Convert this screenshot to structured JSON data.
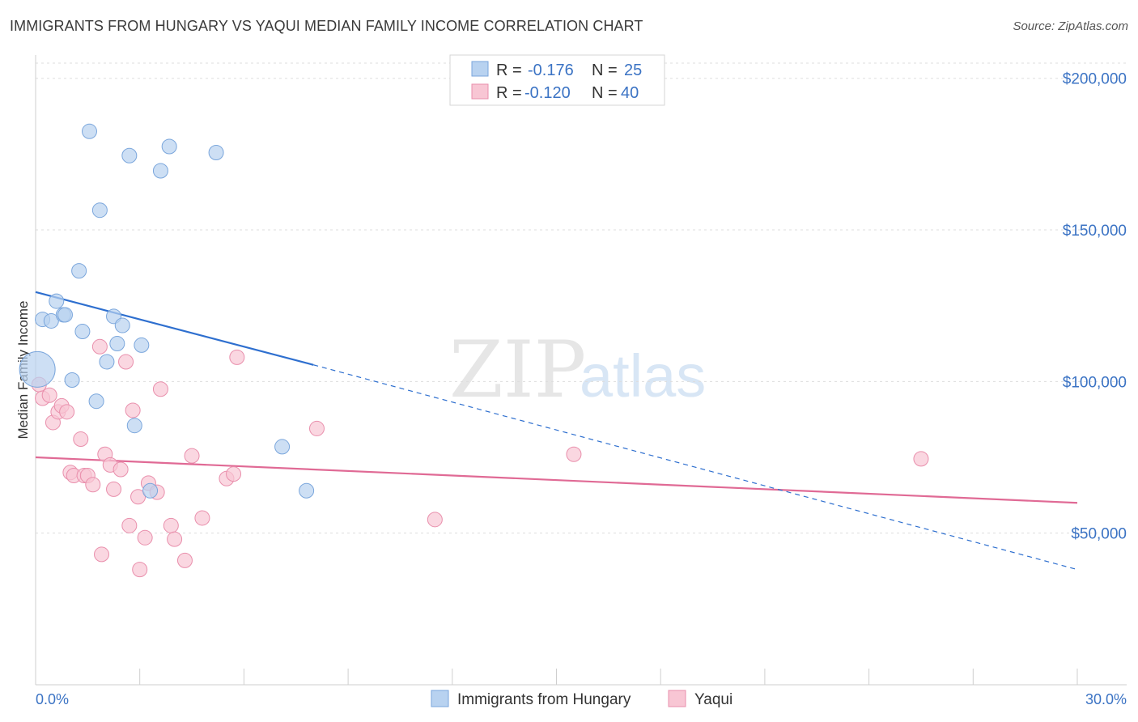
{
  "header": {
    "title": "IMMIGRANTS FROM HUNGARY VS YAQUI MEDIAN FAMILY INCOME CORRELATION CHART",
    "source": "Source: ZipAtlas.com"
  },
  "watermark": {
    "zip": "ZIP",
    "atlas": "atlas"
  },
  "colors": {
    "blue_fill": "#b8d2f0",
    "blue_stroke": "#7aa6dc",
    "blue_line": "#2e6fcf",
    "pink_fill": "#f8c6d4",
    "pink_stroke": "#e98fac",
    "pink_line": "#e06a95",
    "grid": "#dddddd",
    "axis_label": "#3b73c4"
  },
  "stats": [
    {
      "r_label": "R = ",
      "r_value": "-0.176",
      "n_label": "N = ",
      "n_value": "25"
    },
    {
      "r_label": "R = ",
      "r_value": "-0.120",
      "n_label": "N = ",
      "n_value": "40"
    }
  ],
  "chart_data": {
    "type": "scatter",
    "title": "IMMIGRANTS FROM HUNGARY VS YAQUI MEDIAN FAMILY INCOME CORRELATION CHART",
    "xlabel": "",
    "ylabel": "Median Family Income",
    "xlim": [
      0,
      30
    ],
    "ylim": [
      0,
      205000
    ],
    "x_tick_labels": [
      "0.0%",
      "30.0%"
    ],
    "y_ticks": [
      50000,
      100000,
      150000,
      200000
    ],
    "y_tick_labels": [
      "$50,000",
      "$100,000",
      "$150,000",
      "$200,000"
    ],
    "grid": "horizontal dashed",
    "legend_position": "bottom-center",
    "series": [
      {
        "name": "Immigrants from Hungary",
        "color": "#b8d2f0",
        "points": [
          {
            "x": 0.05,
            "y": 104000,
            "big": true
          },
          {
            "x": 0.2,
            "y": 120500
          },
          {
            "x": 0.45,
            "y": 120000
          },
          {
            "x": 0.6,
            "y": 126500
          },
          {
            "x": 0.8,
            "y": 122000
          },
          {
            "x": 0.85,
            "y": 122000
          },
          {
            "x": 1.05,
            "y": 100500
          },
          {
            "x": 1.25,
            "y": 136500
          },
          {
            "x": 1.35,
            "y": 116500
          },
          {
            "x": 1.55,
            "y": 182500
          },
          {
            "x": 1.75,
            "y": 93500
          },
          {
            "x": 1.85,
            "y": 156500
          },
          {
            "x": 2.05,
            "y": 106500
          },
          {
            "x": 2.25,
            "y": 121500
          },
          {
            "x": 2.35,
            "y": 112500
          },
          {
            "x": 2.5,
            "y": 118500
          },
          {
            "x": 2.7,
            "y": 174500
          },
          {
            "x": 2.85,
            "y": 85500
          },
          {
            "x": 3.05,
            "y": 112000
          },
          {
            "x": 3.3,
            "y": 64000
          },
          {
            "x": 3.6,
            "y": 169500
          },
          {
            "x": 3.85,
            "y": 177500
          },
          {
            "x": 5.2,
            "y": 175500
          },
          {
            "x": 7.1,
            "y": 78500
          },
          {
            "x": 7.8,
            "y": 64000
          }
        ],
        "trend": {
          "x": [
            0,
            8
          ],
          "y": [
            129500,
            105500
          ]
        },
        "trend_extension": {
          "x": [
            8,
            30
          ],
          "y": [
            105500,
            38000
          ]
        }
      },
      {
        "name": "Yaqui",
        "color": "#f8c6d4",
        "points": [
          {
            "x": 0.1,
            "y": 99000
          },
          {
            "x": 0.2,
            "y": 94500
          },
          {
            "x": 0.4,
            "y": 95500
          },
          {
            "x": 0.5,
            "y": 86500
          },
          {
            "x": 0.65,
            "y": 90000
          },
          {
            "x": 0.75,
            "y": 92000
          },
          {
            "x": 0.9,
            "y": 90000
          },
          {
            "x": 1.0,
            "y": 70000
          },
          {
            "x": 1.1,
            "y": 69000
          },
          {
            "x": 1.3,
            "y": 81000
          },
          {
            "x": 1.4,
            "y": 69000
          },
          {
            "x": 1.5,
            "y": 69000
          },
          {
            "x": 1.65,
            "y": 66000
          },
          {
            "x": 1.85,
            "y": 111500
          },
          {
            "x": 1.9,
            "y": 43000
          },
          {
            "x": 2.0,
            "y": 76000
          },
          {
            "x": 2.15,
            "y": 72500
          },
          {
            "x": 2.25,
            "y": 64500
          },
          {
            "x": 2.45,
            "y": 71000
          },
          {
            "x": 2.6,
            "y": 106500
          },
          {
            "x": 2.7,
            "y": 52500
          },
          {
            "x": 2.8,
            "y": 90500
          },
          {
            "x": 2.95,
            "y": 62000
          },
          {
            "x": 3.0,
            "y": 38000
          },
          {
            "x": 3.15,
            "y": 48500
          },
          {
            "x": 3.25,
            "y": 66500
          },
          {
            "x": 3.5,
            "y": 63500
          },
          {
            "x": 3.6,
            "y": 97500
          },
          {
            "x": 3.9,
            "y": 52500
          },
          {
            "x": 4.0,
            "y": 48000
          },
          {
            "x": 4.3,
            "y": 41000
          },
          {
            "x": 4.5,
            "y": 75500
          },
          {
            "x": 4.8,
            "y": 55000
          },
          {
            "x": 5.5,
            "y": 68000
          },
          {
            "x": 5.7,
            "y": 69500
          },
          {
            "x": 5.8,
            "y": 108000
          },
          {
            "x": 8.1,
            "y": 84500
          },
          {
            "x": 11.5,
            "y": 54500
          },
          {
            "x": 15.5,
            "y": 76000
          },
          {
            "x": 25.5,
            "y": 74500
          }
        ],
        "trend": {
          "x": [
            0,
            30
          ],
          "y": [
            75000,
            60000
          ]
        }
      }
    ]
  }
}
